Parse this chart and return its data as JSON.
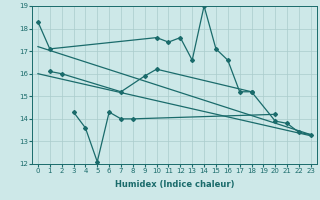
{
  "x": [
    0,
    1,
    2,
    3,
    4,
    5,
    6,
    7,
    8,
    9,
    10,
    11,
    12,
    13,
    14,
    15,
    16,
    17,
    18,
    19,
    20,
    21,
    22,
    23
  ],
  "line1": [
    18.3,
    17.1,
    null,
    null,
    null,
    null,
    null,
    null,
    null,
    null,
    17.6,
    17.4,
    17.6,
    16.6,
    19.0,
    17.1,
    16.6,
    15.2,
    15.2,
    null,
    13.9,
    13.8,
    13.4,
    13.3
  ],
  "line2": [
    null,
    16.1,
    16.0,
    null,
    null,
    null,
    null,
    15.2,
    null,
    15.9,
    16.2,
    null,
    null,
    null,
    null,
    null,
    null,
    null,
    15.2,
    null,
    null,
    null,
    null,
    null
  ],
  "line3": [
    null,
    null,
    null,
    14.3,
    13.6,
    12.1,
    14.3,
    14.0,
    14.0,
    null,
    null,
    null,
    null,
    null,
    null,
    null,
    null,
    null,
    null,
    null,
    14.2,
    null,
    null,
    null
  ],
  "trend1_x": [
    0,
    23
  ],
  "trend1_y": [
    17.2,
    13.3
  ],
  "trend2_x": [
    0,
    23
  ],
  "trend2_y": [
    16.0,
    13.25
  ],
  "bg_color": "#cde8e8",
  "line_color": "#1a6b6b",
  "grid_color": "#aacccc",
  "ylim": [
    12,
    19
  ],
  "xlim": [
    -0.5,
    23.5
  ],
  "yticks": [
    12,
    13,
    14,
    15,
    16,
    17,
    18,
    19
  ],
  "xticks": [
    0,
    1,
    2,
    3,
    4,
    5,
    6,
    7,
    8,
    9,
    10,
    11,
    12,
    13,
    14,
    15,
    16,
    17,
    18,
    19,
    20,
    21,
    22,
    23
  ],
  "xlabel": "Humidex (Indice chaleur)",
  "title": ""
}
